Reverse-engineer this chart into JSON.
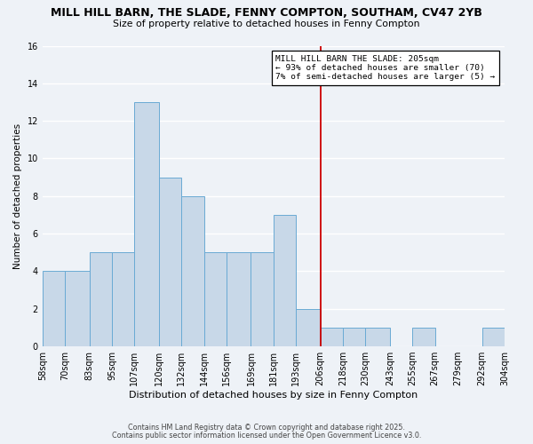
{
  "title1": "MILL HILL BARN, THE SLADE, FENNY COMPTON, SOUTHAM, CV47 2YB",
  "title2": "Size of property relative to detached houses in Fenny Compton",
  "xlabel": "Distribution of detached houses by size in Fenny Compton",
  "ylabel": "Number of detached properties",
  "bin_labels": [
    "58sqm",
    "70sqm",
    "83sqm",
    "95sqm",
    "107sqm",
    "120sqm",
    "132sqm",
    "144sqm",
    "156sqm",
    "169sqm",
    "181sqm",
    "193sqm",
    "206sqm",
    "218sqm",
    "230sqm",
    "243sqm",
    "255sqm",
    "267sqm",
    "279sqm",
    "292sqm",
    "304sqm"
  ],
  "bin_edges": [
    58,
    70,
    83,
    95,
    107,
    120,
    132,
    144,
    156,
    169,
    181,
    193,
    206,
    218,
    230,
    243,
    255,
    267,
    279,
    292,
    304
  ],
  "counts": [
    4,
    4,
    5,
    5,
    13,
    9,
    8,
    5,
    5,
    5,
    7,
    2,
    1,
    1,
    1,
    0,
    1,
    0,
    0,
    1
  ],
  "bar_color": "#c8d8e8",
  "bar_edge_color": "#6aaad4",
  "vline_x": 206,
  "vline_color": "#cc0000",
  "annotation_title": "MILL HILL BARN THE SLADE: 205sqm",
  "annotation_line1": "← 93% of detached houses are smaller (70)",
  "annotation_line2": "7% of semi-detached houses are larger (5) →",
  "ylim": [
    0,
    16
  ],
  "yticks": [
    0,
    2,
    4,
    6,
    8,
    10,
    12,
    14,
    16
  ],
  "footer1": "Contains HM Land Registry data © Crown copyright and database right 2025.",
  "footer2": "Contains public sector information licensed under the Open Government Licence v3.0.",
  "bg_color": "#eef2f7"
}
